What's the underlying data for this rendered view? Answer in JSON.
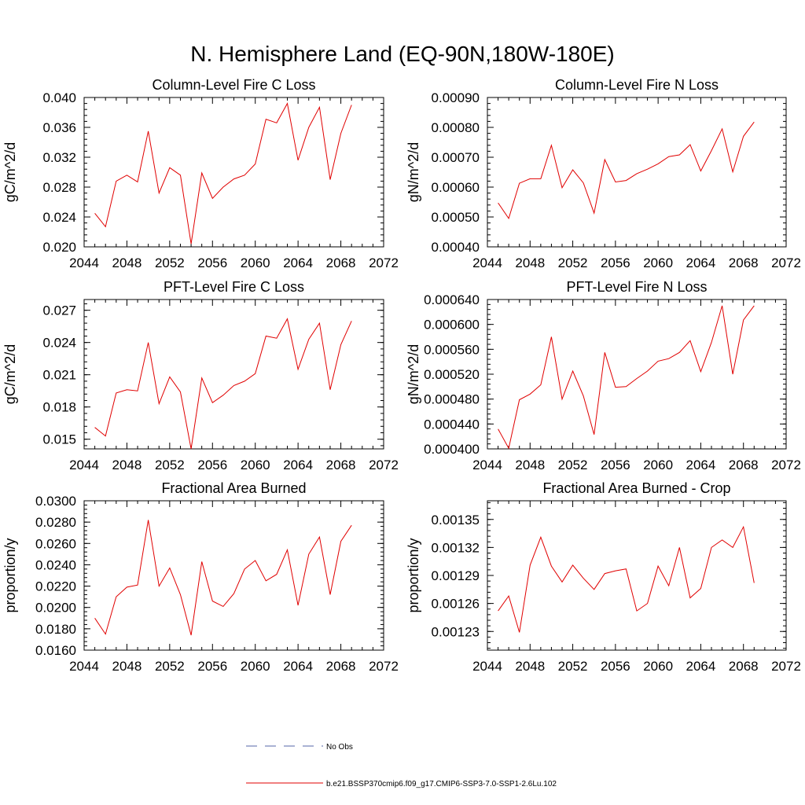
{
  "figure": {
    "title": "N. Hemisphere Land (EQ-90N,180W-180E)"
  },
  "legend": {
    "items": [
      {
        "label": "No Obs",
        "color": "#5566aa",
        "dash": true
      },
      {
        "label": "b.e21.BSSP370cmip6.f09_g17.CMIP6-SSP3-7.0-SSP1-2.6Lu.102",
        "color": "#e00000",
        "dash": false
      }
    ]
  },
  "chart_data": [
    {
      "type": "line",
      "title": "Column-Level Fire C Loss",
      "ylabel": "gC/m^2/d",
      "xlabel": "",
      "xlim": [
        2044,
        2072
      ],
      "ylim": [
        0.02,
        0.04
      ],
      "xticks": [
        "2044",
        "2048",
        "2052",
        "2056",
        "2060",
        "2064",
        "2068",
        "2072"
      ],
      "yticks": [
        "0.020",
        "0.024",
        "0.028",
        "0.032",
        "0.036",
        "0.040"
      ],
      "x": [
        2045,
        2046,
        2047,
        2048,
        2049,
        2050,
        2051,
        2052,
        2053,
        2054,
        2055,
        2056,
        2057,
        2058,
        2059,
        2060,
        2061,
        2062,
        2063,
        2064,
        2065,
        2066,
        2067,
        2068,
        2069
      ],
      "series": [
        {
          "color": "#e00000",
          "values": [
            0.0245,
            0.0227,
            0.0288,
            0.0296,
            0.0287,
            0.0355,
            0.0272,
            0.0306,
            0.0296,
            0.0204,
            0.0299,
            0.0265,
            0.028,
            0.0291,
            0.0296,
            0.0311,
            0.0371,
            0.0366,
            0.0392,
            0.0316,
            0.036,
            0.0387,
            0.029,
            0.0352,
            0.039
          ]
        }
      ]
    },
    {
      "type": "line",
      "title": "Column-Level Fire N Loss",
      "ylabel": "gN/m^2/d",
      "xlabel": "",
      "xlim": [
        2044,
        2072
      ],
      "ylim": [
        0.0004,
        0.0009
      ],
      "xticks": [
        "2044",
        "2048",
        "2052",
        "2056",
        "2060",
        "2064",
        "2068",
        "2072"
      ],
      "yticks": [
        "0.00040",
        "0.00050",
        "0.00060",
        "0.00070",
        "0.00080",
        "0.00090"
      ],
      "x": [
        2045,
        2046,
        2047,
        2048,
        2049,
        2050,
        2051,
        2052,
        2053,
        2054,
        2055,
        2056,
        2057,
        2058,
        2059,
        2060,
        2061,
        2062,
        2063,
        2064,
        2065,
        2066,
        2067,
        2068,
        2069
      ],
      "series": [
        {
          "color": "#e00000",
          "values": [
            0.000547,
            0.000495,
            0.000613,
            0.000628,
            0.000628,
            0.00074,
            0.000598,
            0.000658,
            0.000614,
            0.000513,
            0.000692,
            0.000617,
            0.000622,
            0.000645,
            0.00066,
            0.000678,
            0.000702,
            0.000708,
            0.000742,
            0.000654,
            0.000722,
            0.000795,
            0.000651,
            0.00077,
            0.000818
          ]
        }
      ]
    },
    {
      "type": "line",
      "title": "PFT-Level Fire C Loss",
      "ylabel": "gC/m^2/d",
      "xlabel": "",
      "xlim": [
        2044,
        2072
      ],
      "ylim": [
        0.0141,
        0.028
      ],
      "xticks": [
        "2044",
        "2048",
        "2052",
        "2056",
        "2060",
        "2064",
        "2068",
        "2072"
      ],
      "yticks": [
        "0.015",
        "0.018",
        "0.021",
        "0.024",
        "0.027"
      ],
      "ytickvalues": [
        0.015,
        0.018,
        0.021,
        0.024,
        0.027
      ],
      "x": [
        2045,
        2046,
        2047,
        2048,
        2049,
        2050,
        2051,
        2052,
        2053,
        2054,
        2055,
        2056,
        2057,
        2058,
        2059,
        2060,
        2061,
        2062,
        2063,
        2064,
        2065,
        2066,
        2067,
        2068,
        2069
      ],
      "series": [
        {
          "color": "#e00000",
          "values": [
            0.0161,
            0.0153,
            0.0193,
            0.0196,
            0.0195,
            0.024,
            0.0183,
            0.0208,
            0.0194,
            0.0141,
            0.0207,
            0.0184,
            0.0191,
            0.02,
            0.0204,
            0.0211,
            0.0246,
            0.0244,
            0.0262,
            0.0215,
            0.0243,
            0.0258,
            0.0196,
            0.0238,
            0.026
          ]
        }
      ]
    },
    {
      "type": "line",
      "title": "PFT-Level Fire N Loss",
      "ylabel": "gN/m^2/d",
      "xlabel": "",
      "xlim": [
        2044,
        2072
      ],
      "ylim": [
        0.0004,
        0.00064
      ],
      "xticks": [
        "2044",
        "2048",
        "2052",
        "2056",
        "2060",
        "2064",
        "2068",
        "2072"
      ],
      "yticks": [
        "0.000400",
        "0.000440",
        "0.000480",
        "0.000520",
        "0.000560",
        "0.000600",
        "0.000640"
      ],
      "x": [
        2045,
        2046,
        2047,
        2048,
        2049,
        2050,
        2051,
        2052,
        2053,
        2054,
        2055,
        2056,
        2057,
        2058,
        2059,
        2060,
        2061,
        2062,
        2063,
        2064,
        2065,
        2066,
        2067,
        2068,
        2069
      ],
      "series": [
        {
          "color": "#e00000",
          "values": [
            0.000432,
            0.000401,
            0.000479,
            0.000488,
            0.000503,
            0.00058,
            0.00048,
            0.000525,
            0.000485,
            0.000423,
            0.000555,
            0.000499,
            0.0005,
            0.000513,
            0.000525,
            0.000541,
            0.000545,
            0.000555,
            0.000574,
            0.000524,
            0.000571,
            0.00063,
            0.00052,
            0.000607,
            0.00063
          ]
        }
      ]
    },
    {
      "type": "line",
      "title": "Fractional Area Burned",
      "ylabel": "proportion/y",
      "xlabel": "",
      "xlim": [
        2044,
        2072
      ],
      "ylim": [
        0.016,
        0.03
      ],
      "xticks": [
        "2044",
        "2048",
        "2052",
        "2056",
        "2060",
        "2064",
        "2068",
        "2072"
      ],
      "yticks": [
        "0.0160",
        "0.0180",
        "0.0200",
        "0.0220",
        "0.0240",
        "0.0260",
        "0.0280",
        "0.0300"
      ],
      "x": [
        2045,
        2046,
        2047,
        2048,
        2049,
        2050,
        2051,
        2052,
        2053,
        2054,
        2055,
        2056,
        2057,
        2058,
        2059,
        2060,
        2061,
        2062,
        2063,
        2064,
        2065,
        2066,
        2067,
        2068,
        2069
      ],
      "series": [
        {
          "color": "#e00000",
          "values": [
            0.019,
            0.0175,
            0.021,
            0.0219,
            0.0221,
            0.0282,
            0.022,
            0.0237,
            0.0212,
            0.0174,
            0.0243,
            0.0206,
            0.0201,
            0.0213,
            0.0236,
            0.0244,
            0.0225,
            0.0231,
            0.0254,
            0.0202,
            0.025,
            0.0266,
            0.0212,
            0.0262,
            0.0277
          ]
        }
      ]
    },
    {
      "type": "line",
      "title": "Fractional Area Burned - Crop",
      "ylabel": "proportion/y",
      "xlabel": "",
      "xlim": [
        2044,
        2072
      ],
      "ylim": [
        0.00121,
        0.00137
      ],
      "xticks": [
        "2044",
        "2048",
        "2052",
        "2056",
        "2060",
        "2064",
        "2068",
        "2072"
      ],
      "yticks": [
        "0.00123",
        "0.00126",
        "0.00129",
        "0.00132",
        "0.00135"
      ],
      "ytickvalues": [
        0.00123,
        0.00126,
        0.00129,
        0.00132,
        0.00135
      ],
      "x": [
        2045,
        2046,
        2047,
        2048,
        2049,
        2050,
        2051,
        2052,
        2053,
        2054,
        2055,
        2056,
        2057,
        2058,
        2059,
        2060,
        2061,
        2062,
        2063,
        2064,
        2065,
        2066,
        2067,
        2068,
        2069
      ],
      "series": [
        {
          "color": "#e00000",
          "values": [
            0.001252,
            0.001268,
            0.001229,
            0.001301,
            0.001331,
            0.0013,
            0.001283,
            0.001301,
            0.001287,
            0.001275,
            0.001292,
            0.001295,
            0.001297,
            0.001252,
            0.00126,
            0.0013,
            0.001279,
            0.00132,
            0.001266,
            0.001276,
            0.00132,
            0.001328,
            0.00132,
            0.001342,
            0.001282
          ]
        }
      ]
    }
  ]
}
